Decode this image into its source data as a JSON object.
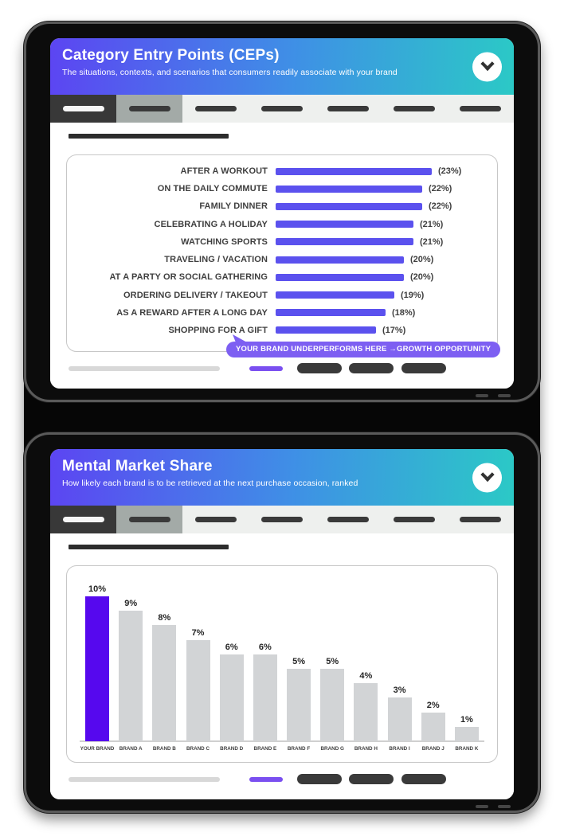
{
  "colors": {
    "header_gradient_start": "#5c45f2",
    "header_gradient_end": "#2bc9c6",
    "cep_bar_purple": "#5b51ee",
    "callout_purple": "#7d5ff2",
    "brand_bar_violet": "#5608ee",
    "other_bar_gray": "#d2d4d6",
    "dark_pill": "#3a3a3a"
  },
  "nav": {
    "tab_count": 7,
    "active_index": 0,
    "secondary_index": 1
  },
  "footer": {
    "pill_count": 3,
    "pill_lefts": [
      310,
      375,
      441
    ]
  },
  "screens": [
    {
      "header": {
        "title": "Category Entry Points (CEPs)",
        "subtitle": "The situations, contexts, and scenarios that consumers readily associate with your brand"
      },
      "chart_data": {
        "type": "bar",
        "orientation": "horizontal",
        "title": "Category Entry Points (CEPs)",
        "categories": [
          "AFTER A WORKOUT",
          "ON THE DAILY COMMUTE",
          "FAMILY DINNER",
          "CELEBRATING A HOLIDAY",
          "WATCHING SPORTS",
          "TRAVELING / VACATION",
          "AT A PARTY OR SOCIAL GATHERING",
          "ORDERING DELIVERY / TAKEOUT",
          "AS A REWARD AFTER A LONG DAY",
          "SHOPPING FOR A GIFT"
        ],
        "values": [
          23,
          22,
          22,
          21,
          21,
          20,
          20,
          19,
          18,
          17
        ],
        "value_labels": [
          "(23%)",
          "(22%)",
          "(22%)",
          "(21%)",
          "(21%)",
          "(20%)",
          "(20%)",
          "(19%)",
          "(18%)",
          "(17%)"
        ],
        "annotation": "YOUR BRAND UNDERPERFORMS HERE →GROWTH OPPORTUNITY",
        "legend": [],
        "grid": false
      }
    },
    {
      "header": {
        "title": "Mental Market Share",
        "subtitle": "How likely each brand is to be retrieved at the next purchase occasion, ranked"
      },
      "chart_data": {
        "type": "bar",
        "orientation": "vertical",
        "title": "Mental Market Share",
        "categories": [
          "YOUR BRAND",
          "BRAND A",
          "BRAND B",
          "BRAND C",
          "BRAND D",
          "BRAND E",
          "BRAND F",
          "BRAND G",
          "BRAND H",
          "BRAND I",
          "BRAND J",
          "BRAND K"
        ],
        "values": [
          10,
          9,
          8,
          7,
          6,
          6,
          5,
          5,
          4,
          3,
          2,
          1
        ],
        "value_labels": [
          "10%",
          "9%",
          "8%",
          "7%",
          "6%",
          "6%",
          "5%",
          "5%",
          "4%",
          "3%",
          "2%",
          "1%"
        ],
        "highlight_index": 0,
        "ylim": [
          0,
          10
        ],
        "legend": [],
        "grid": false
      }
    }
  ]
}
